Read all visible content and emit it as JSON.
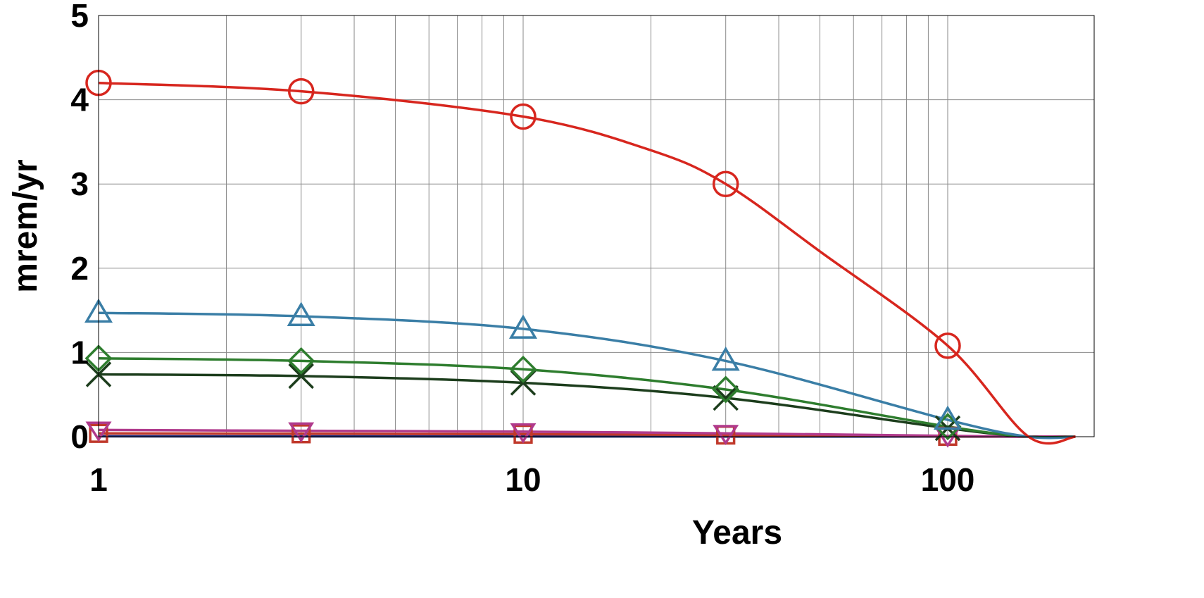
{
  "chart_data": {
    "type": "line",
    "xscale": "log",
    "xlabel": "Years",
    "ylabel": "mrem/yr",
    "xlim": [
      1,
      200
    ],
    "ylim": [
      0,
      5
    ],
    "grid": true,
    "x_ticks": [
      "1",
      "10",
      "100"
    ],
    "y_ticks": [
      "0",
      "1",
      "2",
      "3",
      "4",
      "5"
    ],
    "series": [
      {
        "color": "#d7261e",
        "marker": "circle",
        "points": [
          [
            1,
            4.2
          ],
          [
            3,
            4.1
          ],
          [
            10,
            3.8
          ],
          [
            30,
            3.0
          ],
          [
            100,
            1.08
          ]
        ],
        "curve": [
          [
            1,
            4.2
          ],
          [
            3,
            4.1
          ],
          [
            10,
            3.8
          ],
          [
            20,
            3.4
          ],
          [
            30,
            3.0
          ],
          [
            50,
            2.2
          ],
          [
            100,
            1.08
          ],
          [
            155,
            0.0
          ],
          [
            200,
            0.0
          ]
        ]
      },
      {
        "color": "#3a7ea6",
        "marker": "triangle",
        "points": [
          [
            1,
            1.47
          ],
          [
            3,
            1.43
          ],
          [
            10,
            1.28
          ],
          [
            30,
            0.9
          ],
          [
            100,
            0.2
          ]
        ],
        "curve": [
          [
            1,
            1.47
          ],
          [
            3,
            1.43
          ],
          [
            10,
            1.28
          ],
          [
            30,
            0.9
          ],
          [
            100,
            0.2
          ],
          [
            155,
            0.0
          ],
          [
            200,
            0.0
          ]
        ]
      },
      {
        "color": "#2e7d2e",
        "marker": "diamond",
        "points": [
          [
            1,
            0.93
          ],
          [
            3,
            0.9
          ],
          [
            10,
            0.8
          ],
          [
            30,
            0.56
          ],
          [
            100,
            0.12
          ]
        ],
        "curve": [
          [
            1,
            0.93
          ],
          [
            3,
            0.9
          ],
          [
            10,
            0.8
          ],
          [
            30,
            0.56
          ],
          [
            100,
            0.12
          ],
          [
            155,
            0.0
          ],
          [
            200,
            0.0
          ]
        ]
      },
      {
        "color": "#1c3d1c",
        "marker": "x",
        "points": [
          [
            1,
            0.74
          ],
          [
            3,
            0.72
          ],
          [
            10,
            0.64
          ],
          [
            30,
            0.46
          ],
          [
            100,
            0.1
          ]
        ],
        "curve": [
          [
            1,
            0.74
          ],
          [
            3,
            0.72
          ],
          [
            10,
            0.64
          ],
          [
            30,
            0.46
          ],
          [
            100,
            0.1
          ],
          [
            155,
            0.0
          ],
          [
            200,
            0.0
          ]
        ]
      },
      {
        "color": "#b03a8c",
        "marker": "inverted-triangle",
        "points": [
          [
            1,
            0.08
          ],
          [
            3,
            0.07
          ],
          [
            10,
            0.06
          ],
          [
            30,
            0.04
          ],
          [
            100,
            0.01
          ]
        ],
        "curve": [
          [
            1,
            0.08
          ],
          [
            3,
            0.07
          ],
          [
            10,
            0.06
          ],
          [
            30,
            0.04
          ],
          [
            100,
            0.01
          ],
          [
            155,
            0.0
          ],
          [
            200,
            0.0
          ]
        ]
      },
      {
        "color": "#c0392b",
        "marker": "square",
        "points": [
          [
            1,
            0.04
          ],
          [
            3,
            0.035
          ],
          [
            10,
            0.03
          ],
          [
            30,
            0.02
          ],
          [
            100,
            0.005
          ]
        ],
        "curve": [
          [
            1,
            0.04
          ],
          [
            3,
            0.035
          ],
          [
            10,
            0.03
          ],
          [
            30,
            0.02
          ],
          [
            100,
            0.005
          ],
          [
            155,
            0.0
          ],
          [
            200,
            0.0
          ]
        ]
      },
      {
        "color": "#1f2a7a",
        "marker": "none",
        "points": [],
        "curve": [
          [
            1,
            0.005
          ],
          [
            100,
            0.002
          ],
          [
            155,
            0.0
          ],
          [
            200,
            0.0
          ]
        ]
      }
    ]
  }
}
